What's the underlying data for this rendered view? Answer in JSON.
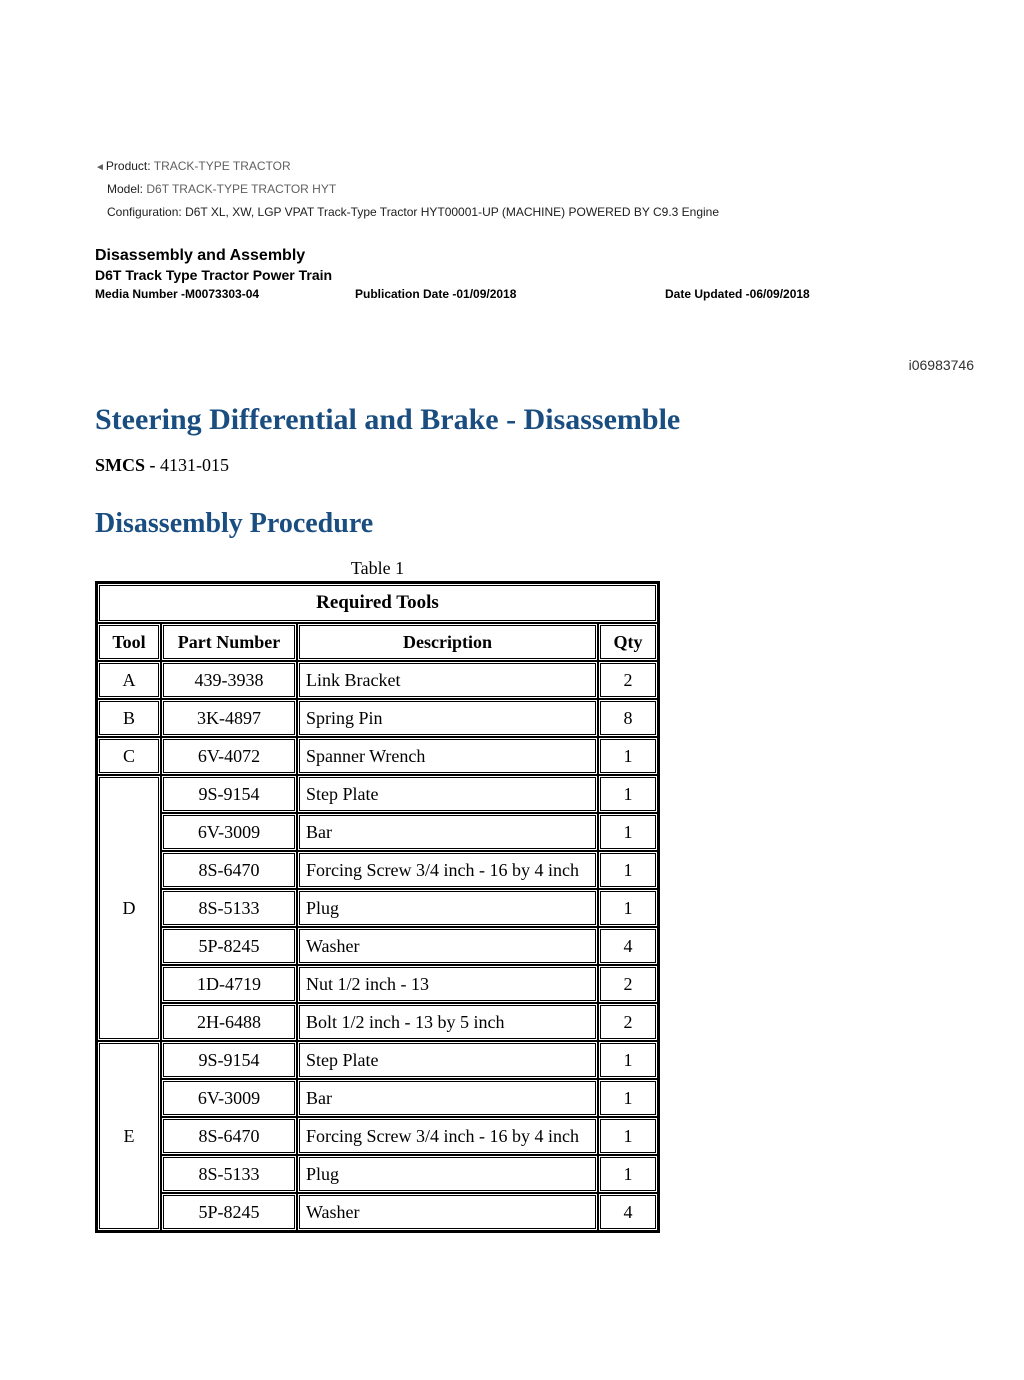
{
  "meta": {
    "product_label": "Product:",
    "product_value": "TRACK-TYPE TRACTOR",
    "model_label": "Model:",
    "model_value": "D6T TRACK-TYPE TRACTOR HYT",
    "config_label": "Configuration:",
    "config_value": "D6T XL, XW, LGP VPAT Track-Type Tractor HYT00001-UP (MACHINE) POWERED BY C9.3 Engine"
  },
  "doc": {
    "section_heading": "Disassembly and Assembly",
    "sub_heading": "D6T Track Type Tractor Power Train",
    "media_number": "Media Number -M0073303-04",
    "pub_date": "Publication Date -01/09/2018",
    "date_updated": "Date Updated -06/09/2018",
    "info_id": "i06983746",
    "title": "Steering Differential and Brake - Disassemble",
    "smcs_label": "SMCS - ",
    "smcs_value": "4131-015",
    "procedure_title": "Disassembly Procedure"
  },
  "table": {
    "caption": "Table 1",
    "span_header": "Required Tools",
    "columns": {
      "tool": "Tool",
      "part": "Part Number",
      "desc": "Description",
      "qty": "Qty"
    },
    "rows": [
      {
        "tool": "A",
        "tool_rowspan": 1,
        "part": "439-3938",
        "desc": "Link Bracket",
        "qty": "2"
      },
      {
        "tool": "B",
        "tool_rowspan": 1,
        "part": "3K-4897",
        "desc": "Spring Pin",
        "qty": "8"
      },
      {
        "tool": "C",
        "tool_rowspan": 1,
        "part": "6V-4072",
        "desc": "Spanner Wrench",
        "qty": "1"
      },
      {
        "tool": "D",
        "tool_rowspan": 7,
        "part": "9S-9154",
        "desc": "Step Plate",
        "qty": "1"
      },
      {
        "tool": "",
        "tool_rowspan": 0,
        "part": "6V-3009",
        "desc": "Bar",
        "qty": "1"
      },
      {
        "tool": "",
        "tool_rowspan": 0,
        "part": "8S-6470",
        "desc": "Forcing Screw 3/4 inch - 16 by 4 inch",
        "qty": "1"
      },
      {
        "tool": "",
        "tool_rowspan": 0,
        "part": "8S-5133",
        "desc": "Plug",
        "qty": "1"
      },
      {
        "tool": "",
        "tool_rowspan": 0,
        "part": "5P-8245",
        "desc": "Washer",
        "qty": "4"
      },
      {
        "tool": "",
        "tool_rowspan": 0,
        "part": "1D-4719",
        "desc": "Nut 1/2 inch - 13",
        "qty": "2"
      },
      {
        "tool": "",
        "tool_rowspan": 0,
        "part": "2H-6488",
        "desc": "Bolt 1/2 inch - 13 by 5 inch",
        "qty": "2"
      },
      {
        "tool": "E",
        "tool_rowspan": 5,
        "part": "9S-9154",
        "desc": "Step Plate",
        "qty": "1"
      },
      {
        "tool": "",
        "tool_rowspan": 0,
        "part": "6V-3009",
        "desc": "Bar",
        "qty": "1"
      },
      {
        "tool": "",
        "tool_rowspan": 0,
        "part": "8S-6470",
        "desc": "Forcing Screw 3/4 inch - 16 by 4 inch",
        "qty": "1"
      },
      {
        "tool": "",
        "tool_rowspan": 0,
        "part": "8S-5133",
        "desc": "Plug",
        "qty": "1"
      },
      {
        "tool": "",
        "tool_rowspan": 0,
        "part": "5P-8245",
        "desc": "Washer",
        "qty": "4"
      }
    ]
  },
  "colors": {
    "heading_blue": "#1a4d80",
    "text": "#000000",
    "meta_grey": "#606060",
    "background": "#ffffff"
  }
}
